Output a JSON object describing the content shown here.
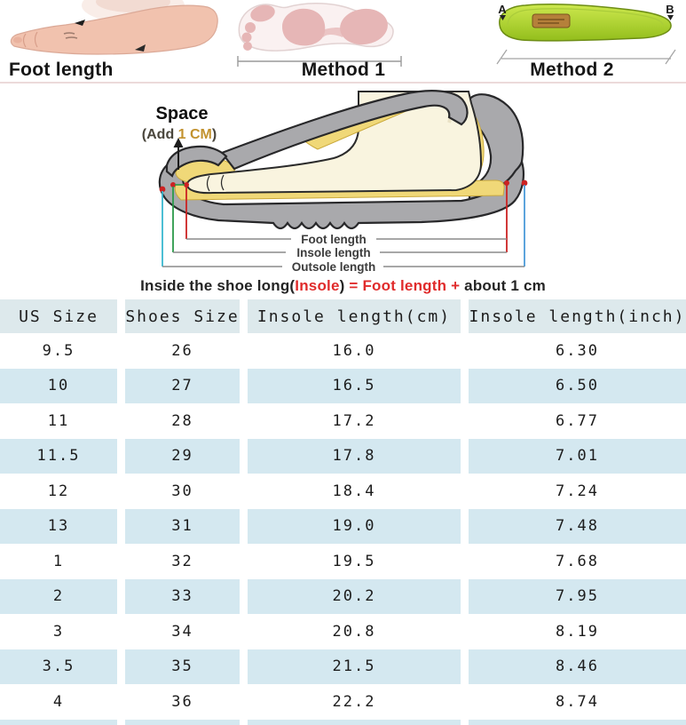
{
  "top_methods": {
    "foot_length_label": "Foot length",
    "method1_label": "Method 1",
    "method2_label": "Method 2",
    "insole_point_a": "A",
    "insole_point_b": "B"
  },
  "diagram": {
    "space_label": "Space",
    "add_prefix": "(Add ",
    "add_value": "1 CM",
    "add_suffix": ")",
    "dim_foot": "Foot length",
    "dim_insole": "Insole length",
    "dim_outsole": "Outsole length"
  },
  "formula": {
    "p1": "Inside the shoe long(",
    "insole": "Insole",
    "p2": ") ",
    "red2": "= Foot length +",
    "p3": " about 1 cm"
  },
  "size_table": {
    "headers": [
      "US Size",
      "Shoes Size",
      "Insole length(cm)",
      "Insole length(inch)"
    ],
    "rows": [
      [
        "9.5",
        "26",
        "16.0",
        "6.30"
      ],
      [
        "10",
        "27",
        "16.5",
        "6.50"
      ],
      [
        "11",
        "28",
        "17.2",
        "6.77"
      ],
      [
        "11.5",
        "29",
        "17.8",
        "7.01"
      ],
      [
        "12",
        "30",
        "18.4",
        "7.24"
      ],
      [
        "13",
        "31",
        "19.0",
        "7.48"
      ],
      [
        "1",
        "32",
        "19.5",
        "7.68"
      ],
      [
        "2",
        "33",
        "20.2",
        "7.95"
      ],
      [
        "3",
        "34",
        "20.8",
        "8.19"
      ],
      [
        "3.5",
        "35",
        "21.5",
        "8.46"
      ],
      [
        "4",
        "36",
        "22.2",
        "8.74"
      ]
    ]
  },
  "colors": {
    "header_bg": "#dde9ec",
    "row_alt_bg": "#d4e8f0",
    "accent_red": "#e02b2b",
    "highlight_gold": "#c2922e",
    "separator_pink": "#ecdada",
    "shoe_gray": "#a9a9ac",
    "insole_yellow": "#f0d878",
    "foot_cream": "#f9f4df",
    "skin_pink": "#f1c2ae",
    "footprint_pink": "#e6b6b6",
    "insole_green_light": "#c9e44a",
    "insole_green_dark": "#96c11e",
    "line_red": "#cc2222",
    "line_green": "#2a9a4a",
    "line_cyan": "#38b8d0",
    "line_blue": "#4a9ad8",
    "measure_gray": "#8a8a8a"
  }
}
